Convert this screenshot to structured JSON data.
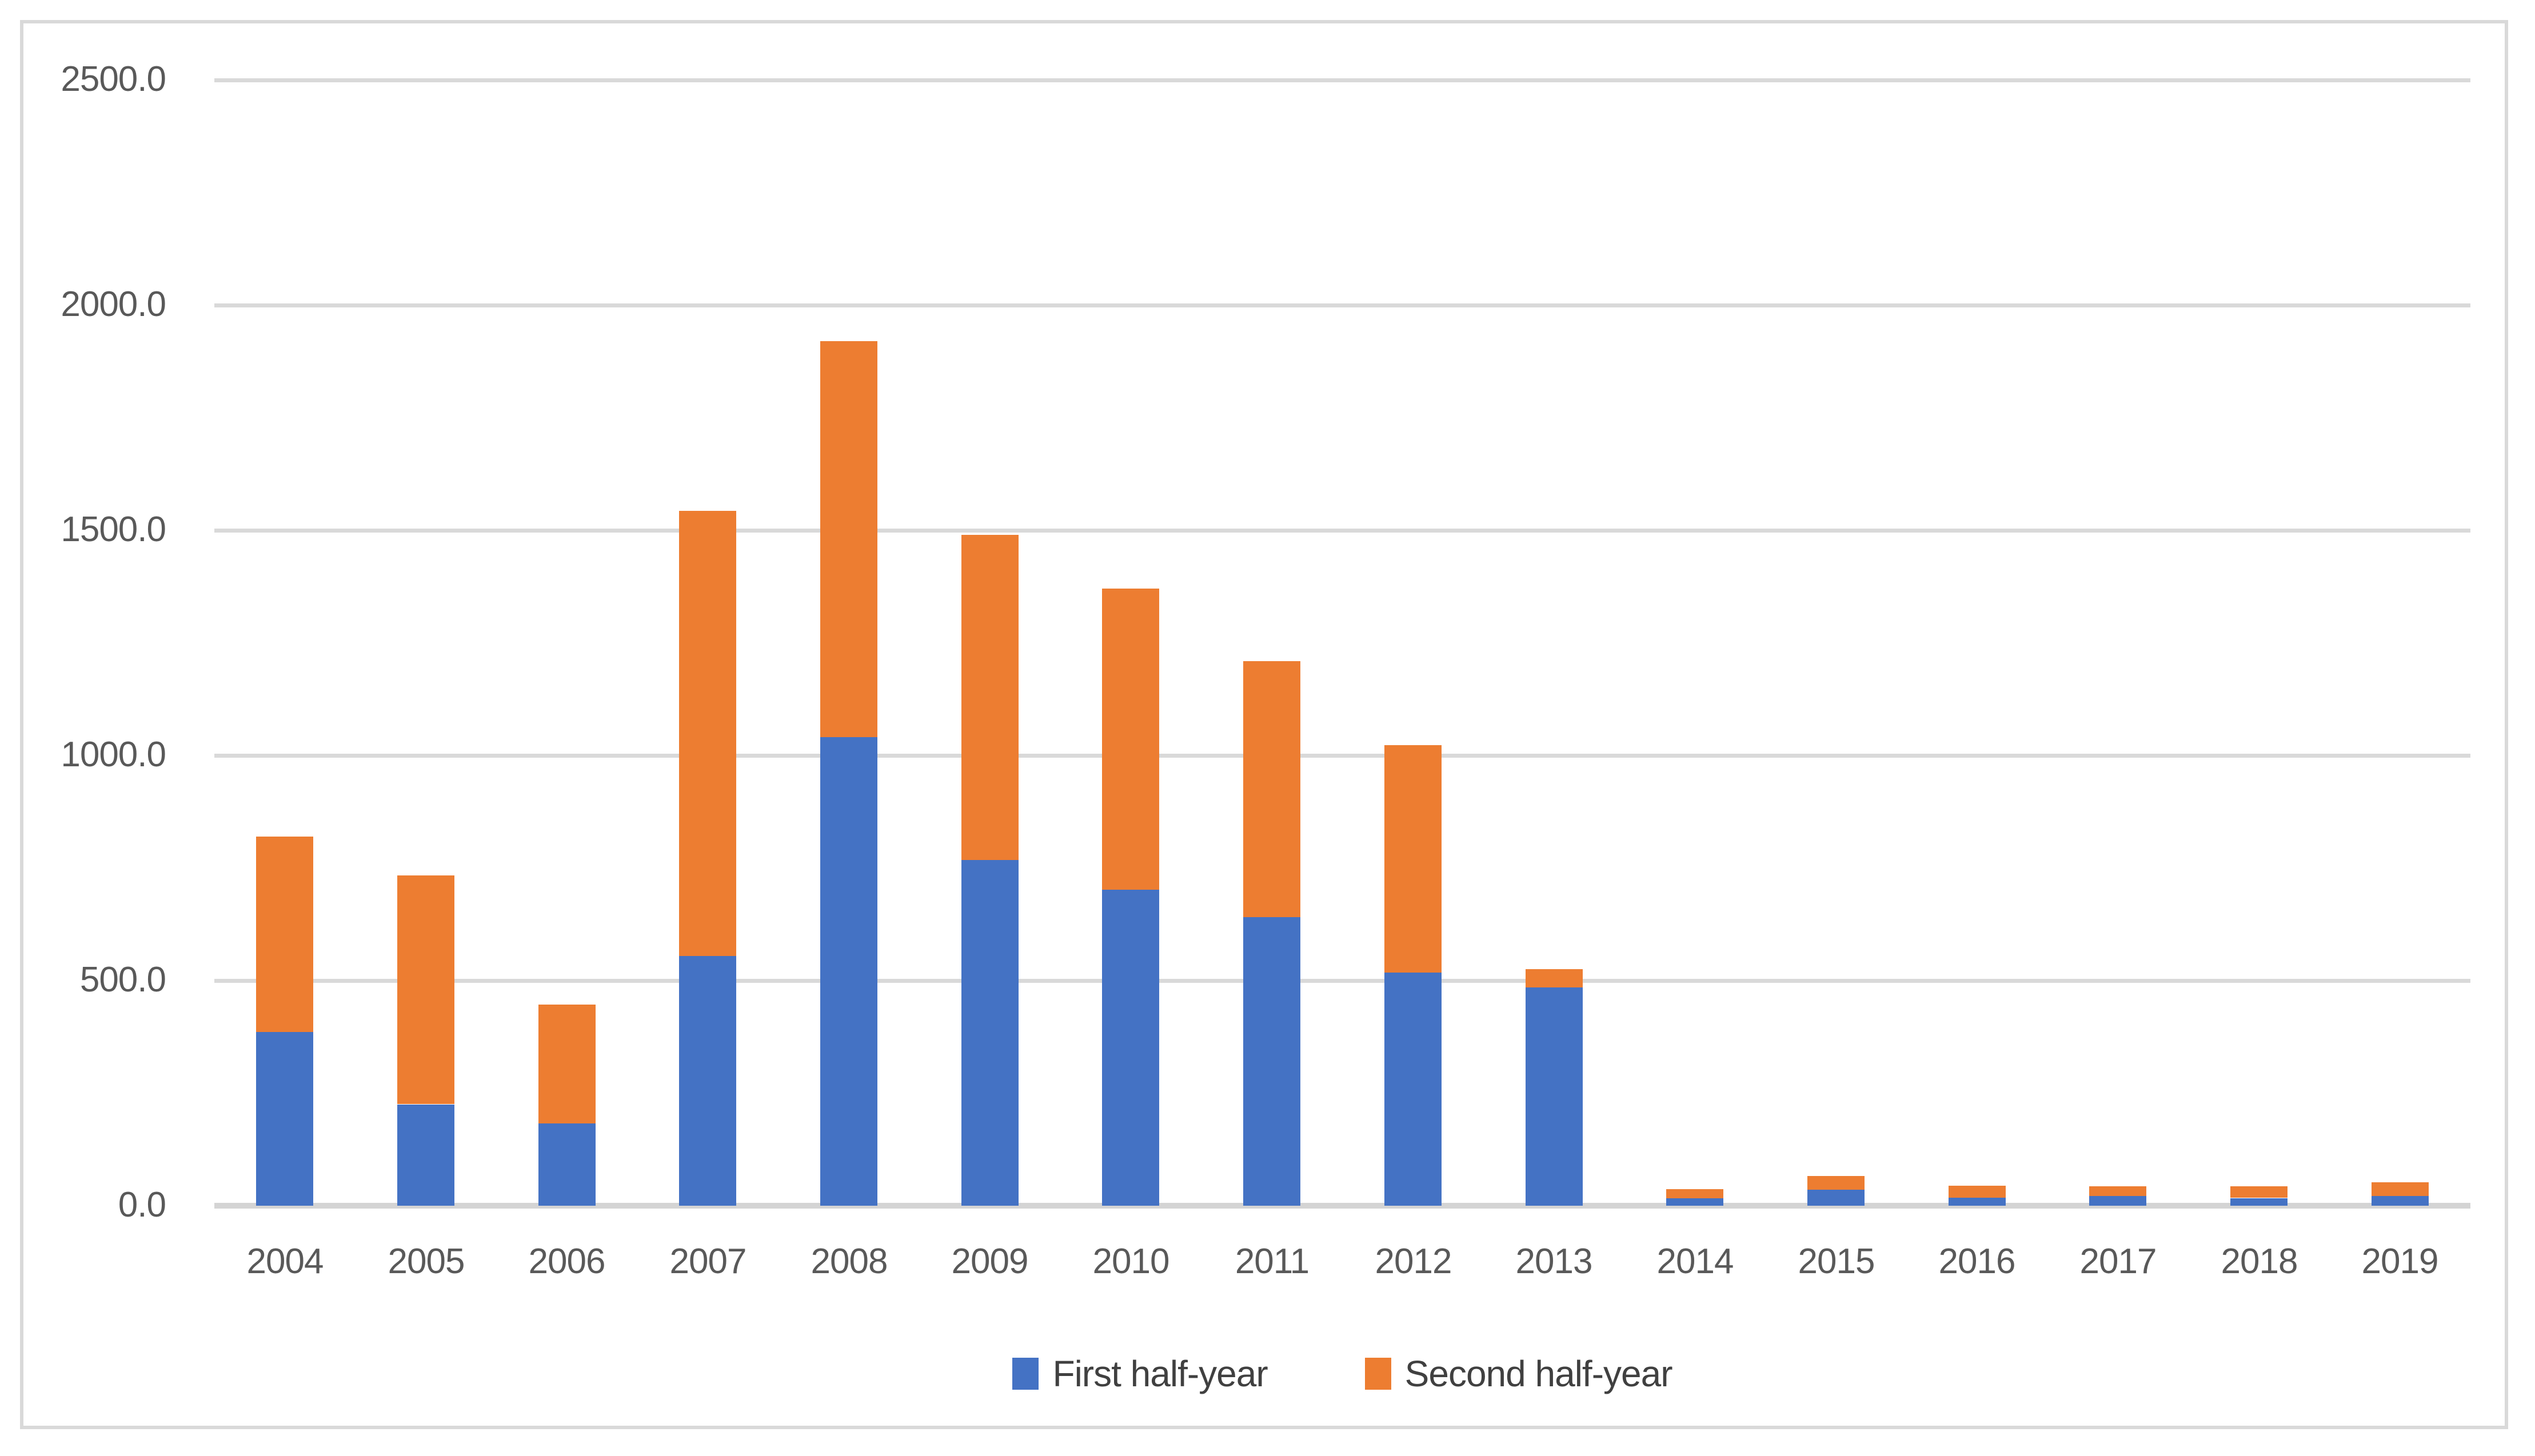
{
  "chart_data": {
    "type": "bar",
    "stacked": true,
    "title": "",
    "xlabel": "",
    "ylabel": "",
    "categories": [
      "2004",
      "2005",
      "2006",
      "2007",
      "2008",
      "2009",
      "2010",
      "2011",
      "2012",
      "2013",
      "2014",
      "2015",
      "2016",
      "2017",
      "2018",
      "2019"
    ],
    "series": [
      {
        "name": "First half-year",
        "color": "#4472C4",
        "values": [
          386,
          225,
          183,
          554,
          1040,
          768,
          702,
          641,
          518,
          485,
          17,
          35,
          18,
          21,
          17,
          21
        ]
      },
      {
        "name": "Second half-year",
        "color": "#ED7D31",
        "values": [
          434,
          508,
          264,
          989,
          880,
          722,
          669,
          568,
          505,
          41,
          20,
          31,
          27,
          22,
          26,
          31
        ]
      }
    ],
    "stack_totals": [
      820,
      733,
      447,
      1543,
      1920,
      1490,
      1371,
      1209,
      1023,
      526,
      37,
      66,
      45,
      43,
      43,
      52
    ],
    "ylim": [
      0,
      2500
    ],
    "y_tick_labels": [
      "0.0",
      "500.0",
      "1000.0",
      "1500.0",
      "2000.0",
      "2500.0"
    ],
    "grid": true,
    "legend_position": "bottom-center"
  },
  "colors": {
    "first_half": "#4472C4",
    "second_half": "#ED7D31",
    "gridline": "#D9D9D9",
    "axis_line": "#D4D4D4",
    "tick_text": "#595959",
    "legend_text": "#404040",
    "frame_border": "#D9D9D9",
    "background": "#FFFFFF"
  }
}
